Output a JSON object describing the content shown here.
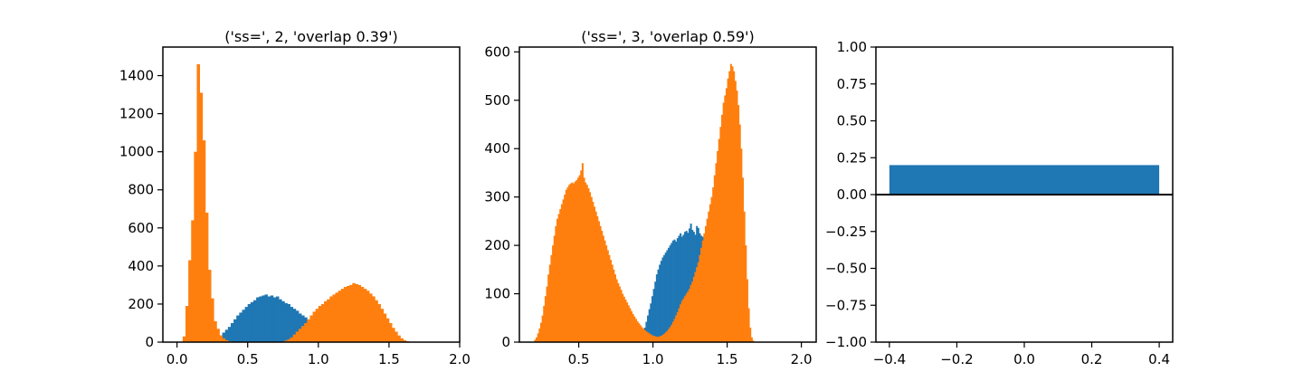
{
  "colors": {
    "series1": "#1f77b4",
    "series2": "#ff7f0e",
    "axis": "#000000",
    "background": "#ffffff"
  },
  "chart_data": [
    {
      "type": "bar",
      "title": "('ss=', 2, 'overlap 0.39')",
      "xlabel": "",
      "ylabel": "",
      "xlim": [
        -0.1,
        2.0
      ],
      "ylim": [
        0,
        1550
      ],
      "xticks": [
        0.0,
        0.5,
        1.0,
        1.5,
        2.0
      ],
      "xtick_labels": [
        "0.0",
        "0.5",
        "1.0",
        "1.5",
        "2.0"
      ],
      "yticks": [
        0,
        200,
        400,
        600,
        800,
        1000,
        1200,
        1400
      ],
      "ytick_labels": [
        "0",
        "200",
        "400",
        "600",
        "800",
        "1000",
        "1200",
        "1400"
      ],
      "grid": false,
      "bin_width": 0.02,
      "series": [
        {
          "color": "#1f77b4",
          "bin_start": 0.2,
          "values": [
            0,
            3,
            8,
            15,
            22,
            35,
            50,
            65,
            80,
            100,
            120,
            140,
            155,
            170,
            185,
            200,
            210,
            220,
            235,
            240,
            245,
            250,
            240,
            245,
            235,
            240,
            225,
            215,
            205,
            200,
            185,
            175,
            165,
            150,
            140,
            130,
            115,
            105,
            95,
            85,
            70,
            60,
            50,
            40,
            30,
            20,
            14,
            8,
            4,
            0
          ]
        },
        {
          "color": "#ff7f0e",
          "bin_start": 0.04,
          "values": [
            30,
            190,
            430,
            640,
            1000,
            1460,
            1310,
            1060,
            680,
            380,
            230,
            110,
            70,
            35,
            20,
            10,
            5,
            2,
            0,
            0,
            0,
            0,
            0,
            0,
            0,
            0,
            0,
            0,
            0,
            0,
            0,
            0,
            0,
            0,
            0,
            3,
            8,
            15,
            25,
            40,
            55,
            70,
            85,
            100,
            120,
            140,
            160,
            175,
            190,
            200,
            215,
            225,
            240,
            250,
            260,
            270,
            280,
            290,
            295,
            300,
            310,
            305,
            300,
            290,
            280,
            270,
            255,
            240,
            220,
            200,
            175,
            150,
            125,
            100,
            75,
            55,
            35,
            20,
            10,
            5,
            2,
            1,
            0,
            0,
            0,
            0,
            0,
            0,
            0,
            0,
            0,
            0,
            0
          ]
        }
      ]
    },
    {
      "type": "bar",
      "title": "('ss=', 3, 'overlap 0.59')",
      "xlabel": "",
      "ylabel": "",
      "xlim": [
        0.1,
        2.1
      ],
      "ylim": [
        0,
        610
      ],
      "xticks": [
        0.5,
        1.0,
        1.5,
        2.0
      ],
      "xtick_labels": [
        "0.5",
        "1.0",
        "1.5",
        "2.0"
      ],
      "yticks": [
        0,
        100,
        200,
        300,
        400,
        500,
        600
      ],
      "ytick_labels": [
        "0",
        "100",
        "200",
        "300",
        "400",
        "500",
        "600"
      ],
      "grid": false,
      "bin_width": 0.01,
      "series": [
        {
          "color": "#1f77b4",
          "bin_start": 0.9,
          "values": [
            2,
            6,
            12,
            20,
            30,
            42,
            55,
            68,
            80,
            95,
            110,
            125,
            140,
            150,
            160,
            168,
            175,
            180,
            185,
            190,
            195,
            200,
            205,
            210,
            212,
            208,
            215,
            220,
            225,
            218,
            222,
            228,
            230,
            226,
            235,
            245,
            232,
            228,
            222,
            240,
            236,
            225,
            220,
            218,
            215,
            200,
            190,
            180,
            168,
            150,
            135,
            115,
            95,
            75,
            55,
            40,
            28,
            18,
            10,
            5,
            2,
            0
          ]
        },
        {
          "color": "#ff7f0e",
          "bin_start": 0.2,
          "values": [
            5,
            10,
            18,
            28,
            40,
            55,
            75,
            95,
            115,
            140,
            160,
            180,
            200,
            220,
            240,
            255,
            265,
            275,
            285,
            295,
            305,
            315,
            320,
            325,
            328,
            330,
            328,
            332,
            335,
            340,
            345,
            355,
            370,
            340,
            330,
            325,
            318,
            310,
            300,
            290,
            280,
            270,
            260,
            250,
            240,
            230,
            220,
            210,
            200,
            190,
            180,
            170,
            160,
            150,
            140,
            130,
            122,
            115,
            108,
            100,
            94,
            88,
            82,
            76,
            70,
            64,
            58,
            53,
            48,
            43,
            39,
            35,
            31,
            28,
            25,
            22,
            20,
            18,
            16,
            14,
            13,
            12,
            11,
            11,
            12,
            13,
            15,
            17,
            20,
            23,
            27,
            31,
            36,
            42,
            48,
            55,
            62,
            70,
            78,
            85,
            90,
            95,
            100,
            105,
            110,
            118,
            125,
            135,
            145,
            155,
            165,
            180,
            195,
            210,
            225,
            240,
            255,
            270,
            285,
            300,
            320,
            345,
            370,
            395,
            420,
            445,
            470,
            495,
            510,
            525,
            545,
            560,
            575,
            570,
            560,
            540,
            520,
            490,
            450,
            400,
            340,
            270,
            200,
            130,
            70,
            30,
            10,
            3,
            0
          ]
        }
      ]
    },
    {
      "type": "bar",
      "title": "",
      "xlabel": "",
      "ylabel": "",
      "xlim": [
        -0.44,
        0.44
      ],
      "ylim": [
        -1.0,
        1.0
      ],
      "xticks": [
        -0.4,
        -0.2,
        0.0,
        0.2,
        0.4
      ],
      "xtick_labels": [
        "−0.4",
        "−0.2",
        "0.0",
        "0.2",
        "0.4"
      ],
      "yticks": [
        -1.0,
        -0.75,
        -0.5,
        -0.25,
        0.0,
        0.25,
        0.5,
        0.75,
        1.0
      ],
      "ytick_labels": [
        "−1.00",
        "−0.75",
        "−0.50",
        "−0.25",
        "0.00",
        "0.25",
        "0.50",
        "0.75",
        "1.00"
      ],
      "grid": false,
      "zero_line": true,
      "categories": [
        0
      ],
      "values": [
        0.2
      ],
      "bar_width": 0.8,
      "series": [
        {
          "color": "#1f77b4",
          "values": [
            0.2
          ]
        }
      ]
    }
  ]
}
